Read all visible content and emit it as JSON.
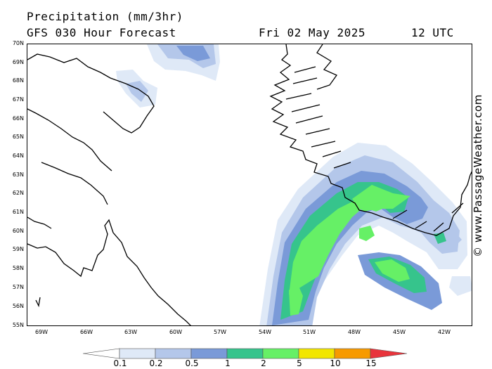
{
  "header": {
    "title": "Precipitation (mm/3hr)",
    "subtitle": "GFS 030 Hour Forecast",
    "date": "Fri 02 May 2025",
    "time": "12 UTC"
  },
  "credit": "© www.PassageWeather.com",
  "map": {
    "lat_labels": [
      "70N",
      "69N",
      "68N",
      "67N",
      "66N",
      "65N",
      "64N",
      "63N",
      "62N",
      "61N",
      "60N",
      "59N",
      "58N",
      "57N",
      "56N",
      "55N"
    ],
    "lon_labels": [
      "69W",
      "66W",
      "63W",
      "60W",
      "57W",
      "54W",
      "51W",
      "48W",
      "45W",
      "42W"
    ],
    "land_outline_color": "#000000",
    "background_color": "#ffffff"
  },
  "colorbar": {
    "labels": [
      "0.1",
      "0.2",
      "0.5",
      "1",
      "2",
      "5",
      "10",
      "15"
    ],
    "colors": [
      "#ffffff",
      "#dfe9f7",
      "#b4c7ea",
      "#7a9ad8",
      "#36c48c",
      "#66f066",
      "#f2e600",
      "#f79a00",
      "#e8343c"
    ]
  }
}
